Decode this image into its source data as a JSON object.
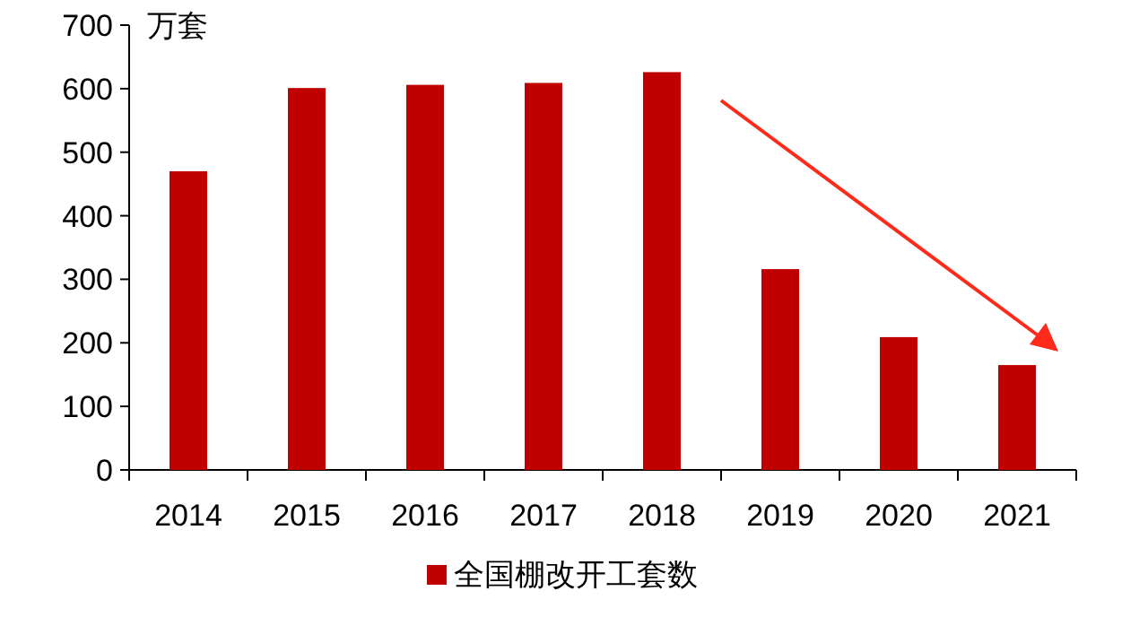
{
  "chart_data": {
    "type": "bar",
    "ylabel": "万套",
    "categories": [
      "2014",
      "2015",
      "2016",
      "2017",
      "2018",
      "2019",
      "2020",
      "2021"
    ],
    "series": [
      {
        "name": "全国棚改开工套数",
        "color": "#c00000",
        "values": [
          470,
          601,
          606,
          609,
          626,
          316,
          209,
          165
        ]
      }
    ],
    "ylim": [
      0,
      700
    ],
    "yticks": [
      0,
      100,
      200,
      300,
      400,
      500,
      600,
      700
    ],
    "legend": "bottom",
    "grid": false
  }
}
